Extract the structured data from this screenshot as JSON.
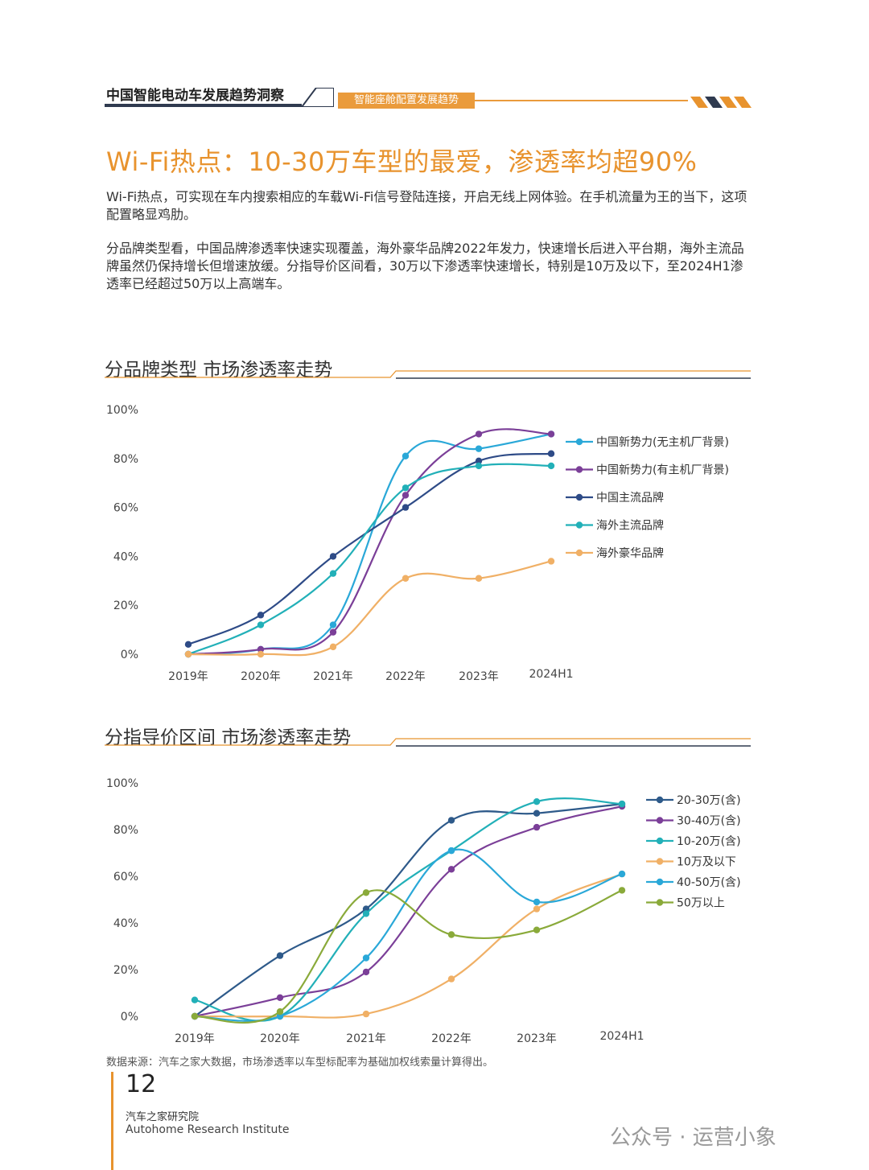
{
  "header": {
    "title": "中国智能电动车发展趋势洞察",
    "tab": "智能座舱配置发展趋势"
  },
  "main_title": "Wi-Fi热点：10-30万车型的最爱，渗透率均超90%",
  "paragraphs": [
    "Wi-Fi热点，可实现在车内搜索相应的车载Wi-Fi信号登陆连接，开启无线上网体验。在手机流量为王的当下，这项配置略显鸡肋。",
    "分品牌类型看，中国品牌渗透率快速实现覆盖，海外豪华品牌2022年发力，快速增长后进入平台期，海外主流品牌虽然仍保持增长但增速放缓。分指导价区间看，30万以下渗透率快速增长，特别是10万及以下，至2024H1渗透率已经超过50万以上高端车。"
  ],
  "sections": [
    {
      "title": "分品牌类型  市场渗透率走势"
    },
    {
      "title": "分指导价区间  市场渗透率走势"
    }
  ],
  "chart_data": [
    {
      "type": "line",
      "title": "分品牌类型  市场渗透率走势",
      "x": [
        "2019年",
        "2020年",
        "2021年",
        "2022年",
        "2023年",
        "2024H1"
      ],
      "yticks": [
        "0%",
        "20%",
        "40%",
        "60%",
        "80%",
        "100%"
      ],
      "ylim": [
        0,
        100
      ],
      "legend_position": "right",
      "series": [
        {
          "name": "中国新势力(无主机厂背景)",
          "color": "#2aa8d8",
          "values": [
            0,
            2,
            12,
            81,
            84,
            90
          ]
        },
        {
          "name": "中国新势力(有主机厂背景)",
          "color": "#7b3f98",
          "values": [
            0,
            2,
            9,
            65,
            90,
            90
          ]
        },
        {
          "name": "中国主流品牌",
          "color": "#2e4b87",
          "values": [
            4,
            16,
            40,
            60,
            79,
            82
          ]
        },
        {
          "name": "海外主流品牌",
          "color": "#22b0b8",
          "values": [
            0,
            12,
            33,
            68,
            77,
            77
          ]
        },
        {
          "name": "海外豪华品牌",
          "color": "#f0b066",
          "values": [
            0,
            0,
            3,
            31,
            31,
            38
          ]
        }
      ]
    },
    {
      "type": "line",
      "title": "分指导价区间  市场渗透率走势",
      "x": [
        "2019年",
        "2020年",
        "2021年",
        "2022年",
        "2023年",
        "2024H1"
      ],
      "yticks": [
        "0%",
        "20%",
        "40%",
        "60%",
        "80%",
        "100%"
      ],
      "ylim": [
        0,
        100
      ],
      "legend_position": "right",
      "series": [
        {
          "name": "20-30万(含)",
          "color": "#2e5a8a",
          "values": [
            0,
            26,
            46,
            84,
            87,
            91
          ]
        },
        {
          "name": "30-40万(含)",
          "color": "#7b3f98",
          "values": [
            0,
            8,
            19,
            63,
            81,
            90
          ]
        },
        {
          "name": "10-20万(含)",
          "color": "#22b0b8",
          "values": [
            7,
            0,
            44,
            71,
            92,
            91
          ]
        },
        {
          "name": "10万及以下",
          "color": "#f0b066",
          "values": [
            0,
            0,
            1,
            16,
            46,
            61
          ]
        },
        {
          "name": "40-50万(含)",
          "color": "#2aa8d8",
          "values": [
            0,
            0,
            25,
            71,
            49,
            61
          ]
        },
        {
          "name": "50万以上",
          "color": "#8aaa3a",
          "values": [
            0,
            2,
            53,
            35,
            37,
            54
          ]
        }
      ]
    }
  ],
  "source_note": "数据来源：汽车之家大数据，市场渗透率以车型标配率为基础加权线索量计算得出。",
  "footer": {
    "page_number": "12",
    "institute_cn": "汽车之家研究院",
    "institute_en": "Autohome Research Institute",
    "watermark": "公众号 · 运营小象"
  },
  "colors": {
    "accent": "#e8932e",
    "dark": "#2f3a4f"
  }
}
